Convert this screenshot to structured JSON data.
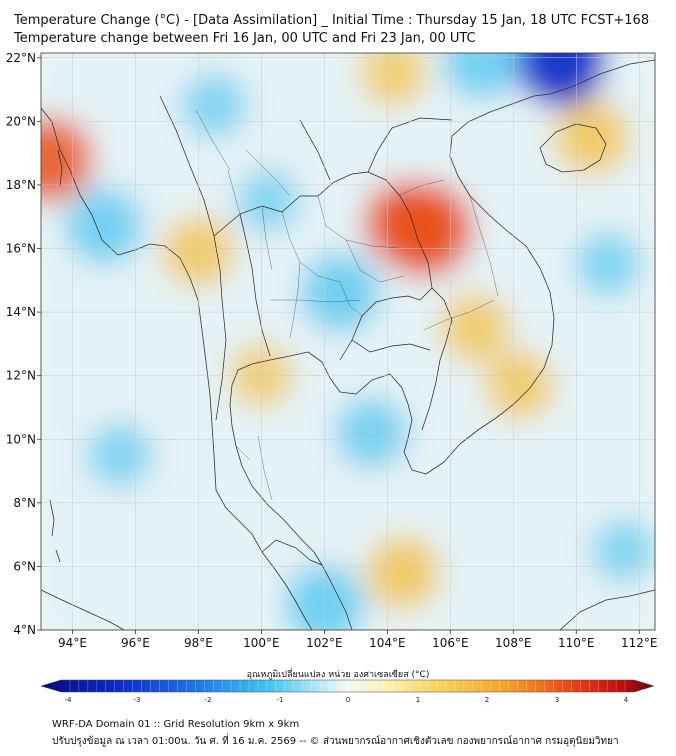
{
  "header": {
    "title_line1": "Temperature Change (°C) - [Data Assimilation] _ Initial Time : Thursday 15 Jan, 18 UTC FCST+168",
    "title_line2": "Temperature change between Fri 16 Jan, 00 UTC and Fri 23 Jan, 00 UTC"
  },
  "map": {
    "lat_labels": [
      "22°N",
      "20°N",
      "18°N",
      "16°N",
      "14°N",
      "12°N",
      "10°N",
      "8°N",
      "6°N",
      "4°N"
    ],
    "lon_labels": [
      "94°E",
      "96°E",
      "98°E",
      "100°E",
      "102°E",
      "104°E",
      "106°E",
      "108°E",
      "110°E",
      "112°E"
    ],
    "field": "temperature change",
    "anomalies": [
      {
        "kind": "warm",
        "lon": 105.2,
        "lat": 16.6,
        "strength": 1.0
      },
      {
        "kind": "warm",
        "lon": 104.6,
        "lat": 16.8,
        "strength": 0.8
      },
      {
        "kind": "warm",
        "lon": 93.3,
        "lat": 18.8,
        "strength": 0.8
      },
      {
        "kind": "warm",
        "lon": 98.0,
        "lat": 15.9,
        "strength": 0.55
      },
      {
        "kind": "warm",
        "lon": 110.5,
        "lat": 19.5,
        "strength": 0.6
      },
      {
        "kind": "warm",
        "lon": 106.8,
        "lat": 13.5,
        "strength": 0.5
      },
      {
        "kind": "warm",
        "lon": 108.2,
        "lat": 11.7,
        "strength": 0.5
      },
      {
        "kind": "warm",
        "lon": 104.5,
        "lat": 5.8,
        "strength": 0.6
      },
      {
        "kind": "warm",
        "lon": 100.0,
        "lat": 12.0,
        "strength": 0.4
      },
      {
        "kind": "warm",
        "lon": 104.2,
        "lat": 21.5,
        "strength": 0.45
      },
      {
        "kind": "cold",
        "lon": 109.5,
        "lat": 21.9,
        "strength": 1.0
      },
      {
        "kind": "cold",
        "lon": 107.0,
        "lat": 21.9,
        "strength": 0.7
      },
      {
        "kind": "cold",
        "lon": 95.0,
        "lat": 16.7,
        "strength": 0.7
      },
      {
        "kind": "cold",
        "lon": 102.5,
        "lat": 14.6,
        "strength": 0.75
      },
      {
        "kind": "cold",
        "lon": 103.5,
        "lat": 10.2,
        "strength": 0.6
      },
      {
        "kind": "cold",
        "lon": 102.0,
        "lat": 4.8,
        "strength": 0.75
      },
      {
        "kind": "cold",
        "lon": 95.5,
        "lat": 9.5,
        "strength": 0.45
      },
      {
        "kind": "cold",
        "lon": 111.0,
        "lat": 15.5,
        "strength": 0.45
      },
      {
        "kind": "cold",
        "lon": 111.5,
        "lat": 6.5,
        "strength": 0.4
      },
      {
        "kind": "cold",
        "lon": 98.5,
        "lat": 20.5,
        "strength": 0.45
      },
      {
        "kind": "cold",
        "lon": 100.2,
        "lat": 17.5,
        "strength": 0.4
      }
    ]
  },
  "colorbar": {
    "title": "อุณหภูมิเปลี่ยนแปลง หน่วย องศาเซลเซียส (°C)",
    "ticks": [
      "-4",
      "-3",
      "-2",
      "-1",
      "0",
      "1",
      "2",
      "3",
      "4"
    ],
    "min": -4,
    "max": 4
  },
  "footer": {
    "line1": "WRF-DA Domain 01 :: Grid Resolution 9km x 9km",
    "line2": "ปรับปรุงข้อมูล ณ เวลา 01:00น. วัน ศ. ที่ 16 ม.ค. 2569 -- © ส่วนพยากรณ์อากาศเชิงตัวเลข กองพยากรณ์อากาศ กรมอุตุนิยมวิทยา"
  },
  "colors": {
    "warm": "#f5c242",
    "hot": "#e8521c",
    "cool": "#5ccaf0",
    "cold": "#1030c8",
    "neutral": "#e4f2f6"
  }
}
